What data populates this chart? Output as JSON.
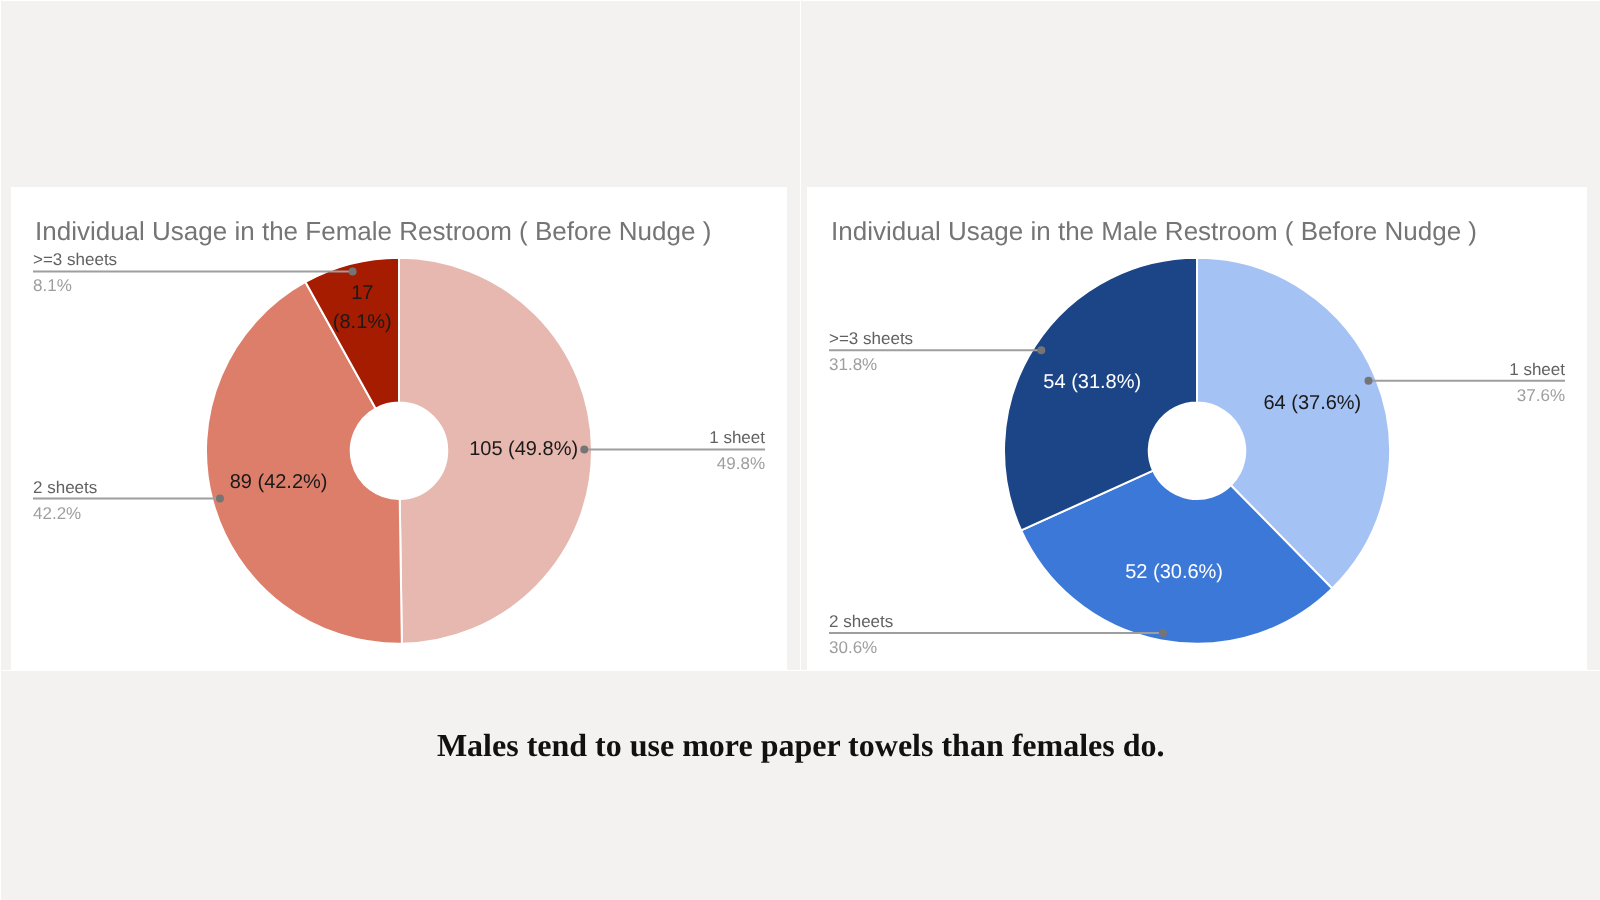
{
  "chart_data": [
    {
      "type": "donut",
      "title": "Individual Usage in the Female Restroom ( Before Nudge )",
      "categories": [
        "1 sheet",
        "2 sheets",
        ">=3 sheets"
      ],
      "values": [
        105,
        89,
        17
      ],
      "colors": [
        "#e6b8af",
        "#dd7e6b",
        "#a61c00"
      ],
      "value_labels": [
        "105 (49.8%)",
        "89 (42.2%)",
        "17 (8.1%)"
      ],
      "annotations": [
        "49.8%",
        "42.2%",
        "8.1%"
      ]
    },
    {
      "type": "donut",
      "title": "Individual Usage in the Male Restroom ( Before Nudge )",
      "categories": [
        "1 sheet",
        "2 sheets",
        ">=3 sheets"
      ],
      "values": [
        64,
        52,
        54
      ],
      "colors": [
        "#a4c2f4",
        "#3c78d8",
        "#1c4587"
      ],
      "value_labels": [
        "64 (37.6%)",
        "52 (30.6%)",
        "54 (31.8%)"
      ],
      "annotations": [
        "37.6%",
        "30.6%",
        "31.8%"
      ]
    },
    {
      "type": "other",
      "annotations": [
        "Males tend to use more paper towels than females do."
      ]
    }
  ]
}
